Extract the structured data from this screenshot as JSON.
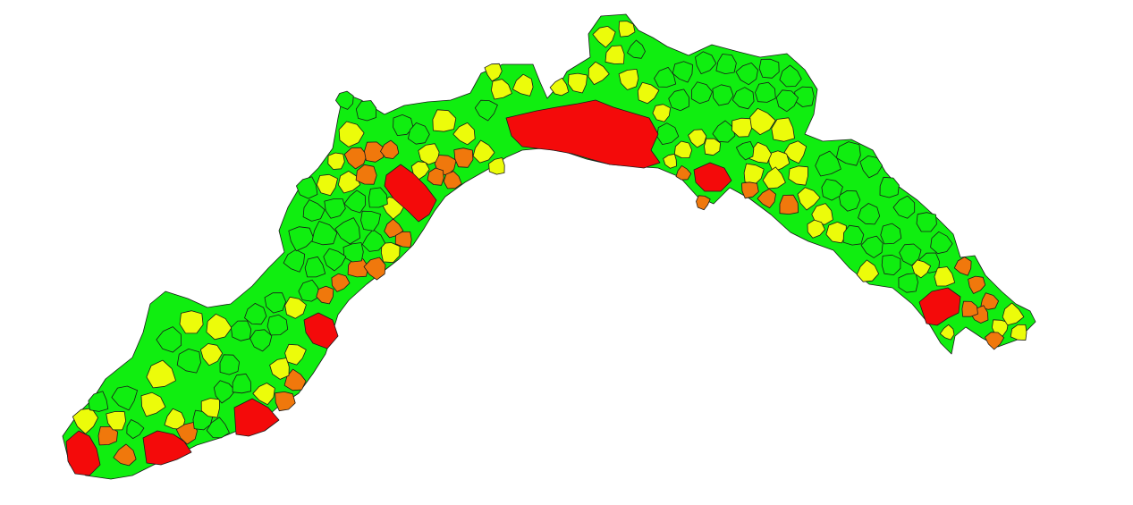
{
  "map": {
    "background": "#ffffff",
    "border_color": "#1a1a1a",
    "classes": [
      {
        "id": "green",
        "color": "#10ee10"
      },
      {
        "id": "yellow",
        "color": "#ecfc0a"
      },
      {
        "id": "orange",
        "color": "#f0780c"
      },
      {
        "id": "red",
        "color": "#f40a0a"
      }
    ]
  }
}
